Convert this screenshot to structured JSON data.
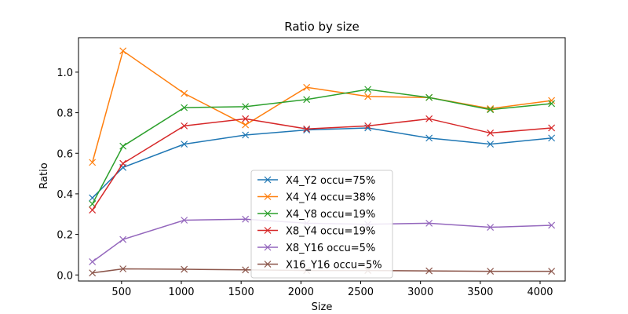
{
  "chart_data": {
    "type": "line",
    "title": "Ratio by size",
    "xlabel": "Size",
    "ylabel": "Ratio",
    "xlim": [
      140,
      4210
    ],
    "ylim": [
      -0.03,
      1.17
    ],
    "xticks": [
      500,
      1000,
      1500,
      2000,
      2500,
      3000,
      3500,
      4000
    ],
    "yticks": [
      0.0,
      0.2,
      0.4,
      0.6,
      0.8,
      1.0
    ],
    "xtick_labels": [
      "500",
      "1000",
      "1500",
      "2000",
      "2500",
      "3000",
      "3500",
      "4000"
    ],
    "ytick_labels": [
      "0.0",
      "0.2",
      "0.4",
      "0.6",
      "0.8",
      "1.0"
    ],
    "grid": false,
    "legend_position": "lower-center",
    "marker": "x",
    "x": [
      256,
      512,
      1024,
      1536,
      2048,
      2560,
      3072,
      3584,
      4096
    ],
    "series": [
      {
        "name": "X4_Y2 occu=75%",
        "color": "#1f77b4",
        "values": [
          0.38,
          0.53,
          0.645,
          0.69,
          0.715,
          0.725,
          0.675,
          0.645,
          0.675
        ]
      },
      {
        "name": "X4_Y4 occu=38%",
        "color": "#ff7f0e",
        "values": [
          0.555,
          1.105,
          0.895,
          0.74,
          0.925,
          0.88,
          0.875,
          0.82,
          0.86
        ]
      },
      {
        "name": "X4_Y8 occu=19%",
        "color": "#2ca02c",
        "values": [
          0.35,
          0.635,
          0.825,
          0.83,
          0.865,
          0.915,
          0.875,
          0.815,
          0.845
        ]
      },
      {
        "name": "X8_Y4 occu=19%",
        "color": "#d62728",
        "values": [
          0.32,
          0.55,
          0.735,
          0.77,
          0.72,
          0.735,
          0.77,
          0.7,
          0.725
        ]
      },
      {
        "name": "X8_Y16 occu=5%",
        "color": "#9467bd",
        "values": [
          0.065,
          0.175,
          0.27,
          0.275,
          0.255,
          0.25,
          0.255,
          0.235,
          0.245
        ]
      },
      {
        "name": "X16_Y16 occu=5%",
        "color": "#8c564b",
        "values": [
          0.01,
          0.03,
          0.028,
          0.025,
          0.022,
          0.022,
          0.02,
          0.018,
          0.018
        ]
      }
    ]
  }
}
